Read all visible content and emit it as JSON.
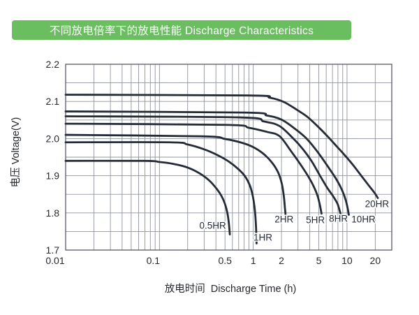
{
  "header": {
    "title": "不同放电倍率下的放电性能 Discharge Characteristics",
    "bg_color": "#6abe60",
    "text_color": "#ffffff"
  },
  "chart_data": {
    "type": "line",
    "x_scale": "log",
    "xlabel": "放电时间  Discharge Time (h)",
    "ylabel": "电压 Voltage(V)",
    "xlim": [
      0.01,
      30
    ],
    "ylim": [
      1.7,
      2.2
    ],
    "y_grid_step": 0.05,
    "grid": true,
    "legend_position": "inline-labels",
    "x_ticks": [
      {
        "label": "0.01",
        "t": 0.01
      },
      {
        "label": "0.1",
        "t": 0.1
      },
      {
        "label": "0.5",
        "t": 0.5
      },
      {
        "label": "1",
        "t": 1
      },
      {
        "label": "2",
        "t": 2
      },
      {
        "label": "5",
        "t": 5
      },
      {
        "label": "10",
        "t": 10
      },
      {
        "label": "20",
        "t": 20
      }
    ],
    "y_ticks": [
      {
        "label": "2.2",
        "v": 2.2
      },
      {
        "label": "2.1",
        "v": 2.1
      },
      {
        "label": "2.0",
        "v": 2.0
      },
      {
        "label": "1.9",
        "v": 1.9
      },
      {
        "label": "1.8",
        "v": 1.8
      },
      {
        "label": "1.7",
        "v": 1.7
      }
    ],
    "series": [
      {
        "name": "0.5HR",
        "points": [
          [
            0.01,
            1.94
          ],
          [
            0.07,
            1.94
          ],
          [
            0.1,
            1.937
          ],
          [
            0.14,
            1.932
          ],
          [
            0.2,
            1.922
          ],
          [
            0.27,
            1.906
          ],
          [
            0.34,
            1.887
          ],
          [
            0.41,
            1.864
          ],
          [
            0.46,
            1.845
          ],
          [
            0.5,
            1.824
          ],
          [
            0.53,
            1.8
          ],
          [
            0.55,
            1.772
          ],
          [
            0.563,
            1.742
          ]
        ]
      },
      {
        "name": "1HR",
        "points": [
          [
            0.01,
            1.99
          ],
          [
            0.13,
            1.99
          ],
          [
            0.2,
            1.984
          ],
          [
            0.3,
            1.971
          ],
          [
            0.42,
            1.955
          ],
          [
            0.55,
            1.938
          ],
          [
            0.7,
            1.917
          ],
          [
            0.82,
            1.898
          ],
          [
            0.92,
            1.874
          ],
          [
            0.99,
            1.845
          ],
          [
            1.04,
            1.808
          ],
          [
            1.07,
            1.765
          ],
          [
            1.085,
            1.718
          ]
        ]
      },
      {
        "name": "2HR",
        "points": [
          [
            0.01,
            2.01
          ],
          [
            0.28,
            2.006
          ],
          [
            0.5,
            1.999
          ],
          [
            0.75,
            1.989
          ],
          [
            1.0,
            1.977
          ],
          [
            1.3,
            1.958
          ],
          [
            1.6,
            1.934
          ],
          [
            1.85,
            1.908
          ],
          [
            2.02,
            1.878
          ],
          [
            2.12,
            1.845
          ],
          [
            2.18,
            1.812
          ],
          [
            2.21,
            1.796
          ]
        ]
      },
      {
        "name": "5HR",
        "points": [
          [
            0.01,
            2.04
          ],
          [
            0.5,
            2.037
          ],
          [
            0.9,
            2.029
          ],
          [
            1.4,
            2.018
          ],
          [
            1.9,
            2.007
          ],
          [
            2.5,
            1.968
          ],
          [
            3.1,
            1.935
          ],
          [
            3.8,
            1.901
          ],
          [
            4.4,
            1.872
          ],
          [
            4.85,
            1.846
          ],
          [
            5.15,
            1.82
          ],
          [
            5.35,
            1.798
          ]
        ]
      },
      {
        "name": "8HR",
        "points": [
          [
            0.01,
            2.06
          ],
          [
            0.7,
            2.057
          ],
          [
            1.3,
            2.046
          ],
          [
            1.9,
            2.034
          ],
          [
            2.7,
            1.999
          ],
          [
            3.4,
            1.971
          ],
          [
            4.2,
            1.939
          ],
          [
            5.1,
            1.902
          ],
          [
            6.1,
            1.869
          ],
          [
            7.1,
            1.845
          ],
          [
            7.9,
            1.825
          ],
          [
            8.35,
            1.806
          ],
          [
            8.55,
            1.796
          ]
        ]
      },
      {
        "name": "10HR",
        "points": [
          [
            0.01,
            2.073
          ],
          [
            0.8,
            2.07
          ],
          [
            1.4,
            2.062
          ],
          [
            2.0,
            2.051
          ],
          [
            2.8,
            2.026
          ],
          [
            3.6,
            2.003
          ],
          [
            4.5,
            1.975
          ],
          [
            5.4,
            1.948
          ],
          [
            6.6,
            1.916
          ],
          [
            7.8,
            1.888
          ],
          [
            8.9,
            1.86
          ],
          [
            9.7,
            1.834
          ],
          [
            10.2,
            1.81
          ],
          [
            10.45,
            1.795
          ]
        ]
      },
      {
        "name": "20HR",
        "points": [
          [
            0.01,
            2.118
          ],
          [
            0.9,
            2.116
          ],
          [
            1.5,
            2.11
          ],
          [
            2.1,
            2.099
          ],
          [
            2.9,
            2.078
          ],
          [
            3.8,
            2.058
          ],
          [
            5.0,
            2.03
          ],
          [
            6.2,
            2.006
          ],
          [
            7.7,
            1.98
          ],
          [
            9.4,
            1.956
          ],
          [
            11.5,
            1.93
          ],
          [
            13.8,
            1.904
          ],
          [
            16.2,
            1.881
          ],
          [
            18.3,
            1.864
          ],
          [
            19.9,
            1.852
          ],
          [
            21.3,
            1.84
          ]
        ]
      }
    ],
    "annotations": [
      {
        "text": "0.5HR",
        "t": 0.37,
        "v": 1.766
      },
      {
        "text": "1HR",
        "t": 1.27,
        "v": 1.734
      },
      {
        "text": "2HR",
        "t": 2.13,
        "v": 1.783
      },
      {
        "text": "5HR",
        "t": 4.6,
        "v": 1.781
      },
      {
        "text": "8HR",
        "t": 8.1,
        "v": 1.785
      },
      {
        "text": "10HR",
        "t": 15.0,
        "v": 1.783
      },
      {
        "text": "20HR",
        "t": 20.9,
        "v": 1.824
      }
    ],
    "colors": {
      "curve": "#242b37",
      "grid": "#8f959d",
      "frame": "#565b63",
      "text": "#26292e"
    }
  }
}
